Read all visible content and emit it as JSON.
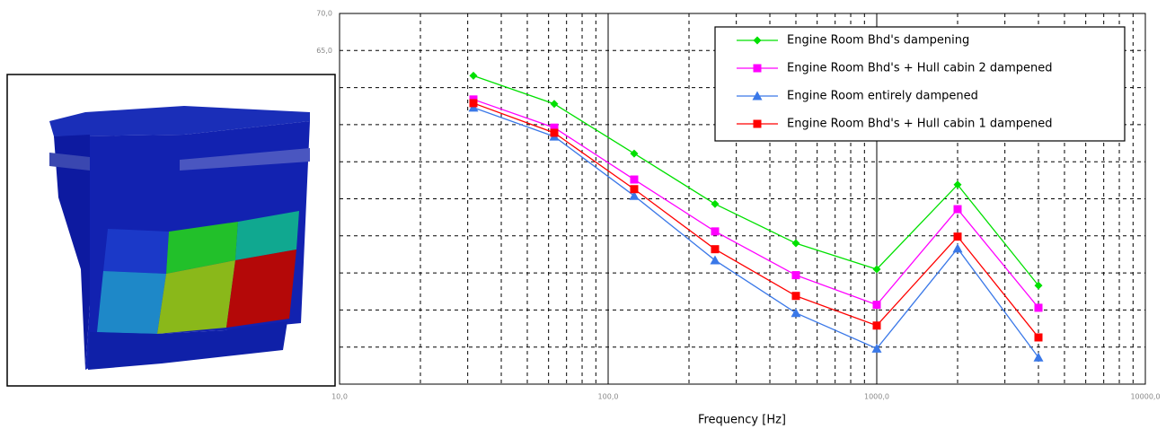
{
  "chart_data": {
    "type": "line",
    "xlabel": "Frequency [Hz]",
    "x": [
      31.5,
      63,
      125,
      250,
      500,
      1000,
      2000,
      4000
    ],
    "xscale": "log",
    "xlim": [
      10,
      10000
    ],
    "xticks": [
      {
        "value": 10,
        "label": "10,0"
      },
      {
        "value": 100,
        "label": "100,0"
      },
      {
        "value": 1000,
        "label": "1000,0"
      },
      {
        "value": 10000,
        "label": "10000,0"
      }
    ],
    "ylim": [
      20,
      70
    ],
    "yticks": [
      {
        "value": 70,
        "label": "70,0"
      },
      {
        "value": 65,
        "label": "65,0"
      },
      {
        "value": 60,
        "label": null
      },
      {
        "value": 55,
        "label": null
      },
      {
        "value": 50,
        "label": null
      },
      {
        "value": 45,
        "label": null
      },
      {
        "value": 40,
        "label": null
      },
      {
        "value": 35,
        "label": null
      },
      {
        "value": 30,
        "label": null
      },
      {
        "value": 25,
        "label": null
      },
      {
        "value": 20,
        "label": null
      }
    ],
    "grid": true,
    "legend": "upper right",
    "series": [
      {
        "name": "Engine Room Bhd's dampening",
        "color": "#00e000",
        "marker": "diamond",
        "values": [
          61.6,
          57.8,
          51.1,
          44.3,
          39.0,
          35.5,
          46.9,
          33.3
        ]
      },
      {
        "name": "Engine Room Bhd's + Hull cabin 2 dampened",
        "color": "#ff00ff",
        "marker": "square",
        "values": [
          58.4,
          54.6,
          47.6,
          40.6,
          34.7,
          30.7,
          43.6,
          30.3
        ]
      },
      {
        "name": "Engine Room entirely dampened",
        "color": "#3a78e8",
        "marker": "triangle",
        "values": [
          57.3,
          53.4,
          45.4,
          36.7,
          29.6,
          24.8,
          38.3,
          23.6
        ]
      },
      {
        "name": "Engine Room Bhd's + Hull cabin 1 dampened",
        "color": "#ff0000",
        "marker": "square",
        "values": [
          57.9,
          53.9,
          46.3,
          38.2,
          31.9,
          27.9,
          39.9,
          26.3
        ]
      }
    ]
  }
}
